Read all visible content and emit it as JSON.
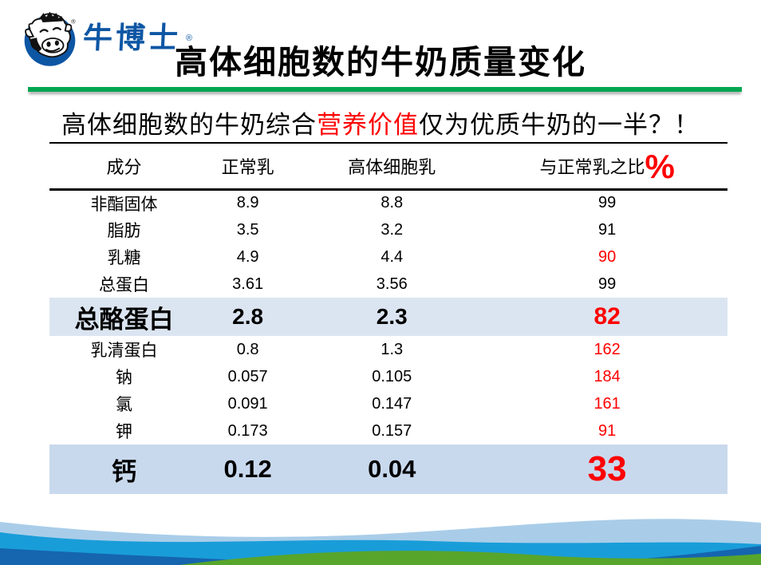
{
  "logo": {
    "brand": "牛博士",
    "trademark": "®"
  },
  "title": "高体细胞数的牛奶质量变化",
  "subtitle": {
    "pre": "高体细胞数的牛奶综合",
    "highlight": "营养价值",
    "post": "仅为优质牛奶的一半？！"
  },
  "table": {
    "headers": [
      "成分",
      "正常乳",
      "高体细胞乳",
      "与正常乳之比"
    ],
    "percent_symbol": "%",
    "rows": [
      {
        "label": "非酯固体",
        "normal": "8.9",
        "high_scc": "8.8",
        "ratio": "99",
        "ratio_red": false,
        "style": "normal"
      },
      {
        "label": "脂肪",
        "normal": "3.5",
        "high_scc": "3.2",
        "ratio": "91",
        "ratio_red": false,
        "style": "normal"
      },
      {
        "label": "乳糖",
        "normal": "4.9",
        "high_scc": "4.4",
        "ratio": "90",
        "ratio_red": true,
        "style": "normal"
      },
      {
        "label": "总蛋白",
        "normal": "3.61",
        "high_scc": "3.56",
        "ratio": "99",
        "ratio_red": false,
        "style": "normal"
      },
      {
        "label": "总酪蛋白",
        "normal": "2.8",
        "high_scc": "2.3",
        "ratio": "82",
        "ratio_red": true,
        "style": "emphasis"
      },
      {
        "label": "乳清蛋白",
        "normal": "0.8",
        "high_scc": "1.3",
        "ratio": "162",
        "ratio_red": true,
        "style": "normal"
      },
      {
        "label": "钠",
        "normal": "0.057",
        "high_scc": "0.105",
        "ratio": "184",
        "ratio_red": true,
        "style": "normal"
      },
      {
        "label": "氯",
        "normal": "0.091",
        "high_scc": "0.147",
        "ratio": "161",
        "ratio_red": true,
        "style": "normal"
      },
      {
        "label": "钾",
        "normal": "0.173",
        "high_scc": "0.157",
        "ratio": "91",
        "ratio_red": true,
        "style": "normal"
      },
      {
        "label": "钙",
        "normal": "0.12",
        "high_scc": "0.04",
        "ratio": "33",
        "ratio_red": true,
        "style": "emphasis-large"
      }
    ]
  },
  "colors": {
    "brand-blue": "#0d56a4",
    "green": "#00a651",
    "red": "#fe0000",
    "hl1": "#dbe5f1",
    "hl2": "#c9d9ed",
    "wave-light": "#a9cde9",
    "wave-bright": "#199dd9",
    "wave-dark": "#1565af",
    "wave-green": "#58a52c"
  }
}
